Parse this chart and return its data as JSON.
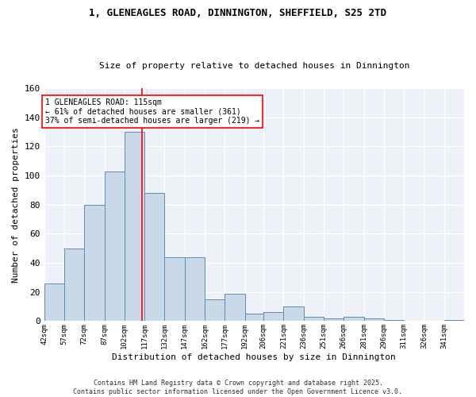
{
  "title": "1, GLENEAGLES ROAD, DINNINGTON, SHEFFIELD, S25 2TD",
  "subtitle": "Size of property relative to detached houses in Dinnington",
  "xlabel": "Distribution of detached houses by size in Dinnington",
  "ylabel": "Number of detached properties",
  "bin_labels": [
    "42sqm",
    "57sqm",
    "72sqm",
    "87sqm",
    "102sqm",
    "117sqm",
    "132sqm",
    "147sqm",
    "162sqm",
    "177sqm",
    "192sqm",
    "206sqm",
    "221sqm",
    "236sqm",
    "251sqm",
    "266sqm",
    "281sqm",
    "296sqm",
    "311sqm",
    "326sqm",
    "341sqm"
  ],
  "bin_edges": [
    42,
    57,
    72,
    87,
    102,
    117,
    132,
    147,
    162,
    177,
    192,
    206,
    221,
    236,
    251,
    266,
    281,
    296,
    311,
    326,
    341,
    356
  ],
  "counts": [
    26,
    50,
    80,
    103,
    130,
    88,
    44,
    44,
    15,
    19,
    5,
    6,
    10,
    3,
    2,
    3,
    2,
    1,
    0,
    0,
    1
  ],
  "bar_color": "#c9d9e8",
  "bar_edge_color": "#5b8db8",
  "grid_color": "#d0d8e8",
  "red_line_x": 115,
  "annotation_text": "1 GLENEAGLES ROAD: 115sqm\n← 61% of detached houses are smaller (361)\n37% of semi-detached houses are larger (219) →",
  "footer": "Contains HM Land Registry data © Crown copyright and database right 2025.\nContains public sector information licensed under the Open Government Licence v3.0.",
  "ylim": [
    0,
    160
  ],
  "yticks": [
    0,
    20,
    40,
    60,
    80,
    100,
    120,
    140,
    160
  ],
  "bg_color": "#eef2f8"
}
